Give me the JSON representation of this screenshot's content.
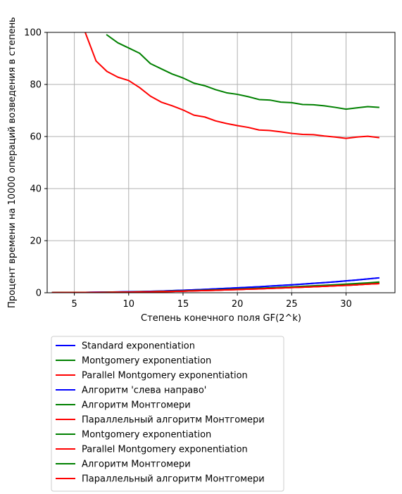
{
  "chart_data": {
    "type": "line",
    "title": "",
    "xlabel": "Степень конечного поля GF(2^k)",
    "ylabel": "Процент времени на 10000 операций возведения в степень",
    "xlim": [
      2.5,
      34.5
    ],
    "ylim": [
      0,
      100
    ],
    "xticks": [
      5,
      10,
      15,
      20,
      25,
      30
    ],
    "yticks": [
      0,
      20,
      40,
      60,
      80,
      100
    ],
    "xtick_labels": [
      "5",
      "10",
      "15",
      "20",
      "25",
      "30"
    ],
    "ytick_labels": [
      "0",
      "20",
      "40",
      "60",
      "80",
      "100"
    ],
    "grid": true,
    "legend_position": "below",
    "x": [
      3,
      4,
      5,
      6,
      7,
      8,
      9,
      10,
      11,
      12,
      13,
      14,
      15,
      16,
      17,
      18,
      19,
      20,
      21,
      22,
      23,
      24,
      25,
      26,
      27,
      28,
      29,
      30,
      31,
      32,
      33
    ],
    "series": [
      {
        "name": "Standard exponentiation",
        "color": "#0000ff",
        "values": [
          0.05,
          0.1,
          0.1,
          0.15,
          0.2,
          0.25,
          0.3,
          0.4,
          0.45,
          0.55,
          0.65,
          0.8,
          0.95,
          1.1,
          1.3,
          1.5,
          1.7,
          1.9,
          2.1,
          2.3,
          2.55,
          2.8,
          3.05,
          3.3,
          3.6,
          3.9,
          4.2,
          4.55,
          4.9,
          5.3,
          5.7
        ]
      },
      {
        "name": "Montgomery exponentiation",
        "color": "#008000",
        "values": [
          null,
          null,
          null,
          null,
          null,
          99,
          96,
          94,
          92,
          88,
          86,
          84,
          82.5,
          80.5,
          79.5,
          78,
          76.8,
          76.2,
          75.3,
          74.2,
          74,
          73.2,
          73,
          72.3,
          72.2,
          71.8,
          71.2,
          70.5,
          71,
          71.5,
          71.2
        ]
      },
      {
        "name": "Parallel Montgomery exponentiation",
        "color": "#ff0000",
        "values": [
          null,
          null,
          null,
          100,
          89,
          85,
          82.8,
          81.5,
          78.8,
          75.5,
          73.2,
          71.8,
          70.2,
          68.2,
          67.5,
          66,
          65,
          64.2,
          63.5,
          62.5,
          62.3,
          61.8,
          61.2,
          60.8,
          60.7,
          60.2,
          59.8,
          59.3,
          59.8,
          60.1,
          59.6
        ]
      },
      {
        "name": "Алгоритм 'слева направо'",
        "color": "#0000ff",
        "values": [
          0.05,
          0.1,
          0.1,
          0.15,
          0.2,
          0.25,
          0.3,
          0.4,
          0.45,
          0.55,
          0.65,
          0.8,
          0.95,
          1.1,
          1.3,
          1.5,
          1.7,
          1.9,
          2.1,
          2.3,
          2.55,
          2.8,
          3.05,
          3.3,
          3.6,
          3.9,
          4.2,
          4.55,
          4.9,
          5.3,
          5.7
        ]
      },
      {
        "name": "Алгоритм Монтгомери",
        "color": "#008000",
        "values": [
          0.03,
          0.06,
          0.07,
          0.1,
          0.13,
          0.17,
          0.21,
          0.27,
          0.32,
          0.4,
          0.47,
          0.57,
          0.68,
          0.8,
          0.92,
          1.05,
          1.2,
          1.35,
          1.5,
          1.65,
          1.82,
          2.0,
          2.18,
          2.36,
          2.55,
          2.75,
          2.95,
          3.15,
          3.4,
          3.65,
          3.9
        ]
      },
      {
        "name": "Параллельный алгоритм Монтгомери",
        "color": "#ff0000",
        "values": [
          0.03,
          0.05,
          0.06,
          0.09,
          0.12,
          0.15,
          0.19,
          0.24,
          0.29,
          0.36,
          0.43,
          0.52,
          0.62,
          0.73,
          0.84,
          0.96,
          1.1,
          1.23,
          1.37,
          1.5,
          1.66,
          1.82,
          1.98,
          2.14,
          2.3,
          2.48,
          2.66,
          2.85,
          3.05,
          3.3,
          3.5
        ]
      },
      {
        "name": "Montgomery exponentiation",
        "color": "#008000",
        "values": [
          0.03,
          0.06,
          0.07,
          0.1,
          0.13,
          0.17,
          0.21,
          0.27,
          0.32,
          0.4,
          0.47,
          0.57,
          0.68,
          0.8,
          0.92,
          1.05,
          1.2,
          1.35,
          1.5,
          1.65,
          1.82,
          2.0,
          2.18,
          2.36,
          2.55,
          2.75,
          2.95,
          3.15,
          3.4,
          3.65,
          3.9
        ]
      },
      {
        "name": "Parallel Montgomery exponentiation",
        "color": "#ff0000",
        "values": [
          0.03,
          0.05,
          0.06,
          0.09,
          0.12,
          0.15,
          0.19,
          0.24,
          0.29,
          0.36,
          0.43,
          0.52,
          0.62,
          0.73,
          0.84,
          0.96,
          1.1,
          1.23,
          1.37,
          1.5,
          1.66,
          1.82,
          1.98,
          2.14,
          2.3,
          2.48,
          2.66,
          2.85,
          3.05,
          3.3,
          3.5
        ]
      },
      {
        "name": "Алгоритм Монтгомери",
        "color": "#008000",
        "values": [
          0.04,
          0.07,
          0.08,
          0.11,
          0.14,
          0.18,
          0.22,
          0.28,
          0.34,
          0.42,
          0.5,
          0.6,
          0.72,
          0.84,
          0.97,
          1.1,
          1.25,
          1.4,
          1.56,
          1.72,
          1.9,
          2.08,
          2.27,
          2.46,
          2.66,
          2.86,
          3.07,
          3.3,
          3.55,
          3.8,
          4.1
        ]
      },
      {
        "name": "Параллельный алгоритм Монтгомери",
        "color": "#ff0000",
        "values": [
          0.03,
          0.05,
          0.06,
          0.09,
          0.12,
          0.15,
          0.19,
          0.24,
          0.29,
          0.36,
          0.43,
          0.52,
          0.62,
          0.73,
          0.84,
          0.96,
          1.1,
          1.23,
          1.37,
          1.5,
          1.66,
          1.82,
          1.98,
          2.14,
          2.3,
          2.48,
          2.66,
          2.85,
          3.05,
          3.3,
          3.5
        ]
      }
    ]
  }
}
